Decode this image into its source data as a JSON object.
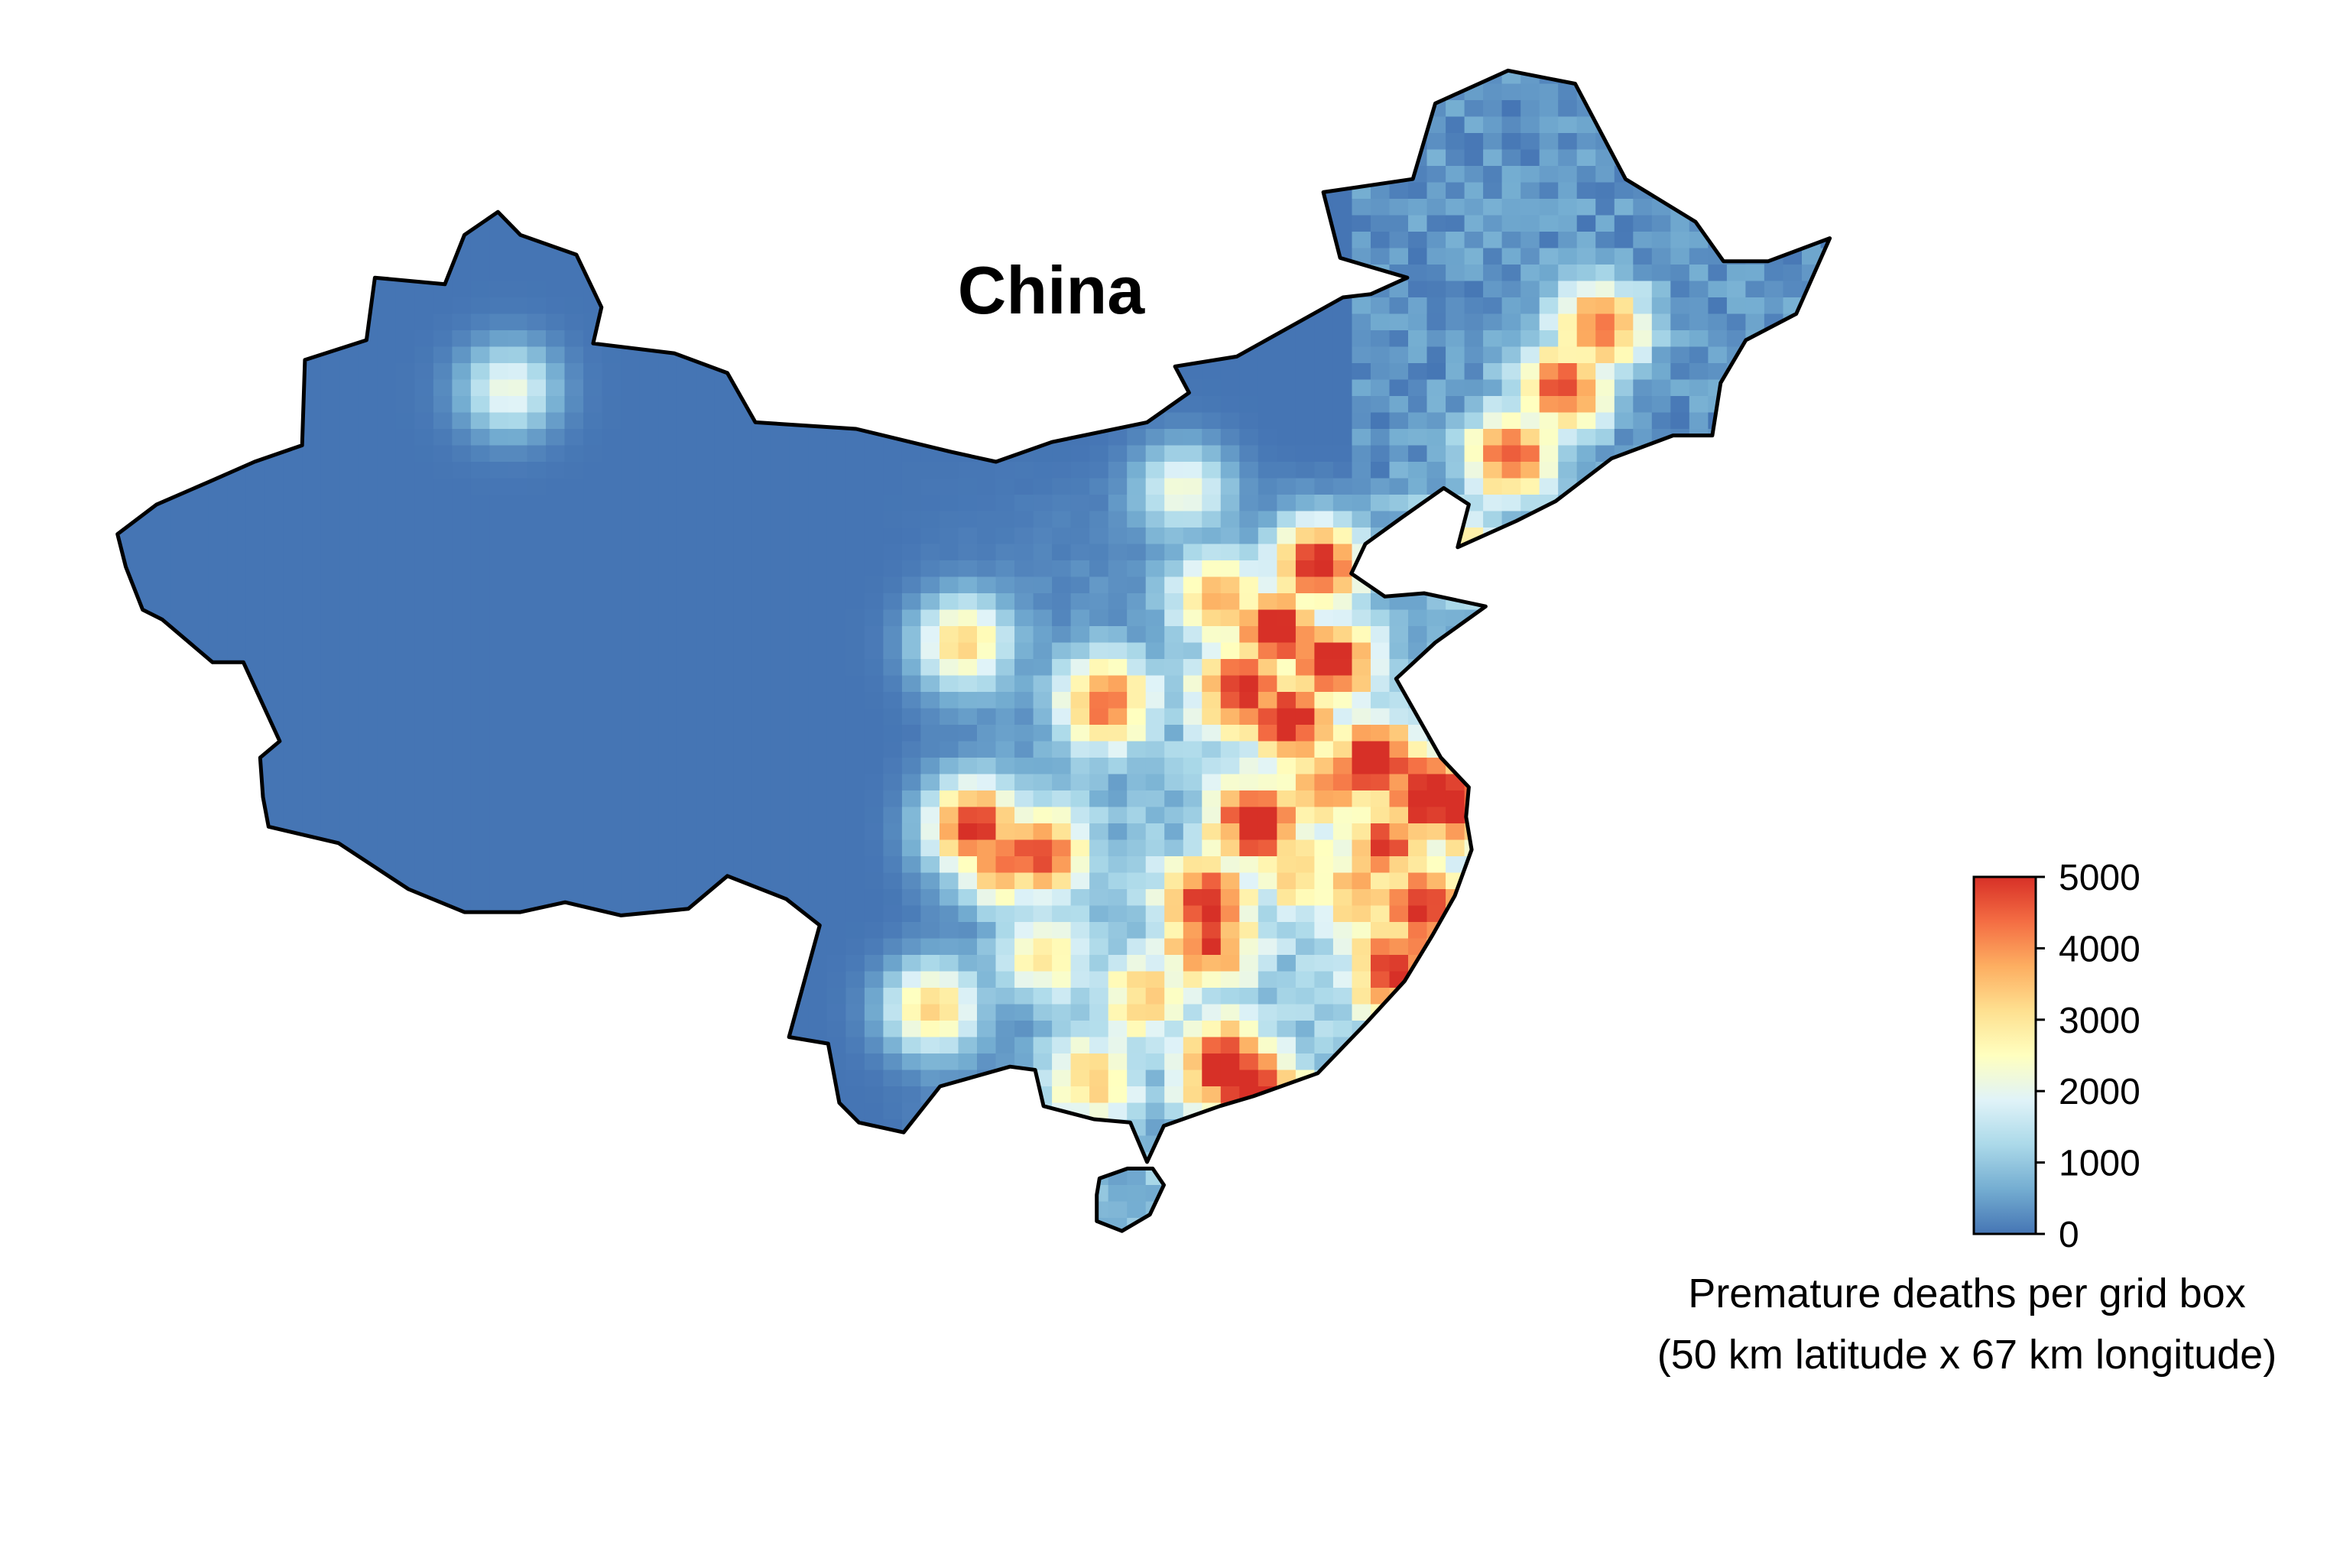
{
  "map": {
    "title": "China",
    "colormap": {
      "stops": [
        "#4575b4",
        "#74add1",
        "#abd9e9",
        "#e0f3f8",
        "#ffffbf",
        "#fee090",
        "#fdae61",
        "#f46d43",
        "#d73027"
      ],
      "min": 0,
      "max": 5000
    },
    "border_color": "#000000",
    "hotspots": [
      {
        "lon": 116.5,
        "lat": 38.5,
        "deaths": 5000
      },
      {
        "lon": 115.0,
        "lat": 36.5,
        "deaths": 5000
      },
      {
        "lon": 117.0,
        "lat": 35.5,
        "deaths": 4800
      },
      {
        "lon": 113.8,
        "lat": 34.7,
        "deaths": 4800
      },
      {
        "lon": 115.5,
        "lat": 33.8,
        "deaths": 4700
      },
      {
        "lon": 113.0,
        "lat": 37.5,
        "deaths": 3600
      },
      {
        "lon": 118.5,
        "lat": 32.5,
        "deaths": 4600
      },
      {
        "lon": 120.5,
        "lat": 31.5,
        "deaths": 5000
      },
      {
        "lon": 121.3,
        "lat": 31.2,
        "deaths": 5000
      },
      {
        "lon": 119.0,
        "lat": 30.0,
        "deaths": 3800
      },
      {
        "lon": 104.2,
        "lat": 30.5,
        "deaths": 5000
      },
      {
        "lon": 106.5,
        "lat": 29.7,
        "deaths": 4500
      },
      {
        "lon": 105.2,
        "lat": 29.5,
        "deaths": 4200
      },
      {
        "lon": 112.5,
        "lat": 28.2,
        "deaths": 4200
      },
      {
        "lon": 114.3,
        "lat": 30.6,
        "deaths": 4600
      },
      {
        "lon": 112.6,
        "lat": 27.0,
        "deaths": 4000
      },
      {
        "lon": 113.3,
        "lat": 23.1,
        "deaths": 5000
      },
      {
        "lon": 114.1,
        "lat": 22.5,
        "deaths": 5000
      },
      {
        "lon": 120.3,
        "lat": 28.0,
        "deaths": 4600
      },
      {
        "lon": 119.3,
        "lat": 26.2,
        "deaths": 4400
      },
      {
        "lon": 117.0,
        "lat": 31.8,
        "deaths": 3500
      },
      {
        "lon": 118.0,
        "lat": 28.5,
        "deaths": 2800
      },
      {
        "lon": 126.6,
        "lat": 45.7,
        "deaths": 4200
      },
      {
        "lon": 125.3,
        "lat": 43.9,
        "deaths": 4600
      },
      {
        "lon": 123.4,
        "lat": 41.8,
        "deaths": 4500
      },
      {
        "lon": 121.6,
        "lat": 38.9,
        "deaths": 3000
      },
      {
        "lon": 108.9,
        "lat": 34.3,
        "deaths": 4000
      },
      {
        "lon": 106.7,
        "lat": 26.6,
        "deaths": 2600
      },
      {
        "lon": 102.7,
        "lat": 25.0,
        "deaths": 3200
      },
      {
        "lon": 108.3,
        "lat": 22.8,
        "deaths": 2800
      },
      {
        "lon": 110.3,
        "lat": 25.3,
        "deaths": 2600
      },
      {
        "lon": 116.0,
        "lat": 29.0,
        "deaths": 2400
      },
      {
        "lon": 103.8,
        "lat": 36.1,
        "deaths": 3200
      },
      {
        "lon": 87.6,
        "lat": 43.8,
        "deaths": 2200
      },
      {
        "lon": 111.7,
        "lat": 40.8,
        "deaths": 2200
      }
    ]
  },
  "legend": {
    "title_line1": "Premature deaths per grid box",
    "title_line2": "(50 km latitude x 67 km longitude)",
    "tick_labels": [
      "5000",
      "4000",
      "3000",
      "2000",
      "1000",
      "0"
    ],
    "tick_values": [
      5000,
      4000,
      3000,
      2000,
      1000,
      0
    ]
  }
}
